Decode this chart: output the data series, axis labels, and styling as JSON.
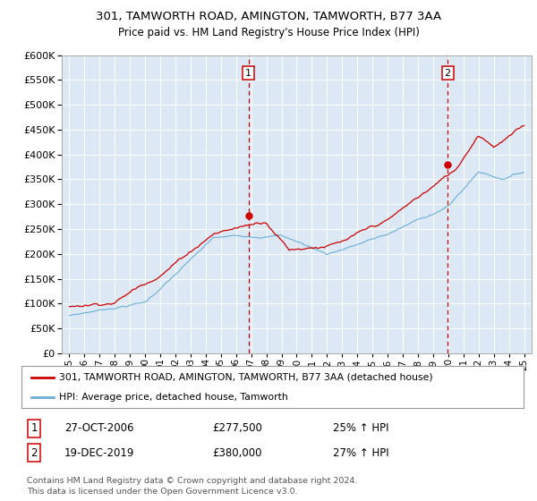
{
  "title1": "301, TAMWORTH ROAD, AMINGTON, TAMWORTH, B77 3AA",
  "title2": "Price paid vs. HM Land Registry's House Price Index (HPI)",
  "ylim": [
    0,
    600000
  ],
  "yticks": [
    0,
    50000,
    100000,
    150000,
    200000,
    250000,
    300000,
    350000,
    400000,
    450000,
    500000,
    550000,
    600000
  ],
  "legend_line1": "301, TAMWORTH ROAD, AMINGTON, TAMWORTH, B77 3AA (detached house)",
  "legend_line2": "HPI: Average price, detached house, Tamworth",
  "annotation1_label": "1",
  "annotation1_date": "27-OCT-2006",
  "annotation1_price": "£277,500",
  "annotation1_hpi": "25% ↑ HPI",
  "annotation2_label": "2",
  "annotation2_date": "19-DEC-2019",
  "annotation2_price": "£380,000",
  "annotation2_hpi": "27% ↑ HPI",
  "vline1_x": 2006.82,
  "vline2_x": 2019.96,
  "dot1_x": 2006.82,
  "dot1_y": 277500,
  "dot2_x": 2019.96,
  "dot2_y": 380000,
  "footer": "Contains HM Land Registry data © Crown copyright and database right 2024.\nThis data is licensed under the Open Government Licence v3.0.",
  "plot_bg": "#dce9f5",
  "red_color": "#cc0000",
  "blue_color": "#6baed6",
  "xmin": 1994.5,
  "xmax": 2025.5
}
